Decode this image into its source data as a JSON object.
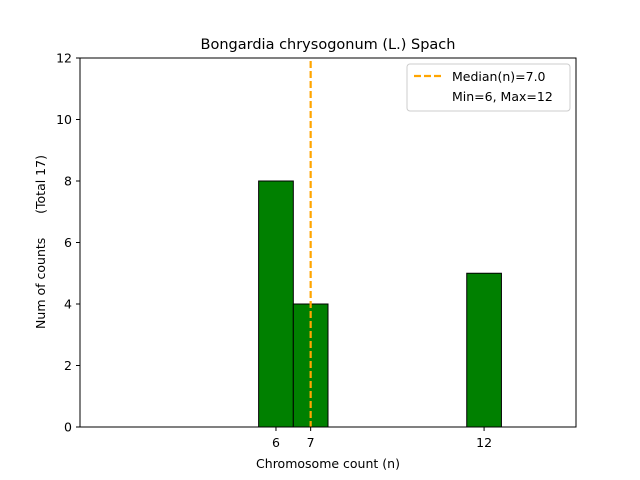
{
  "chart_data": {
    "type": "bar",
    "title": "Bongardia chrysogonum (L.) Spach",
    "xlabel": "Chromosome count (n)",
    "ylabel": "Num of counts      (Total 17)",
    "xlim": [
      0.35,
      14.65
    ],
    "ylim": [
      0,
      12
    ],
    "x_ticks": [
      6,
      7,
      12
    ],
    "y_ticks": [
      0,
      2,
      4,
      6,
      8,
      10,
      12
    ],
    "bar_width": 1,
    "bars": [
      {
        "x": 6,
        "value": 8
      },
      {
        "x": 7,
        "value": 4
      },
      {
        "x": 12,
        "value": 5
      }
    ],
    "median": 7.0,
    "min": 6,
    "max": 12,
    "legend": {
      "location": "top-right",
      "entries": [
        "Median(n)=7.0",
        "Min=6, Max=12"
      ]
    },
    "colors": {
      "bar_fill": "#008000",
      "bar_edge": "#000000",
      "median_line": "#FFA500"
    }
  }
}
